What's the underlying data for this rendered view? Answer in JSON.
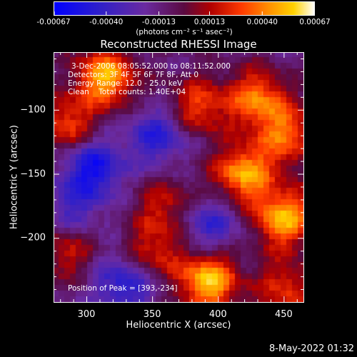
{
  "colorbar": {
    "tick_labels": [
      "-0.00067",
      "-0.00040",
      "-0.00013",
      "0.00013",
      "0.00040",
      "0.00067"
    ],
    "unit_label": "(photons cm⁻² s⁻¹ asec⁻²)",
    "range": [
      -0.00067,
      0.00067
    ]
  },
  "chart_data": {
    "type": "heatmap",
    "title": "Reconstructed RHESSI Image",
    "xlabel": "Heliocentric X (arcsec)",
    "ylabel": "Heliocentric Y (arcsec)",
    "xlim": [
      275,
      465
    ],
    "ylim": [
      -250,
      -55
    ],
    "xticks": [
      300,
      350,
      400,
      450
    ],
    "yticks": [
      -100,
      -150,
      -200
    ],
    "colormap": "rainbow-heat (blue-purple-red-orange-yellow-white)",
    "peak": [
      393,
      -234
    ],
    "blobs": [
      {
        "x": 315,
        "y": -75,
        "amp": 0.00062
      },
      {
        "x": 285,
        "y": -112,
        "amp": 0.0004
      },
      {
        "x": 385,
        "y": -98,
        "amp": 0.0004
      },
      {
        "x": 430,
        "y": -92,
        "amp": 0.0005
      },
      {
        "x": 453,
        "y": -120,
        "amp": 0.00045
      },
      {
        "x": 420,
        "y": -150,
        "amp": 0.0006
      },
      {
        "x": 450,
        "y": -185,
        "amp": 0.00062
      },
      {
        "x": 360,
        "y": -175,
        "amp": 0.0003
      },
      {
        "x": 285,
        "y": -210,
        "amp": 0.0003
      },
      {
        "x": 350,
        "y": -212,
        "amp": 0.00035
      },
      {
        "x": 393,
        "y": -234,
        "amp": 0.00067
      },
      {
        "x": 452,
        "y": -240,
        "amp": 0.00035
      },
      {
        "x": 305,
        "y": -145,
        "amp": -0.00045
      },
      {
        "x": 355,
        "y": -120,
        "amp": -0.00035
      },
      {
        "x": 330,
        "y": -235,
        "amp": -0.0004
      },
      {
        "x": 395,
        "y": -190,
        "amp": -0.0003
      },
      {
        "x": 290,
        "y": -178,
        "amp": -0.00025
      }
    ],
    "annotations": {
      "time_range": "3-Dec-2006 08:05:52.000 to 08:11:52.000",
      "detectors": "Detectors: 3F 4F 5F 6F 7F 8F, Att 0",
      "energy": "Energy Range: 12.0 - 25.0 keV",
      "clean": "Clean    Total counts: 1.40E+04",
      "peak_label": "Position of Peak = [393,-234]"
    }
  },
  "footer": {
    "date": "8-May-2022 01:32"
  }
}
